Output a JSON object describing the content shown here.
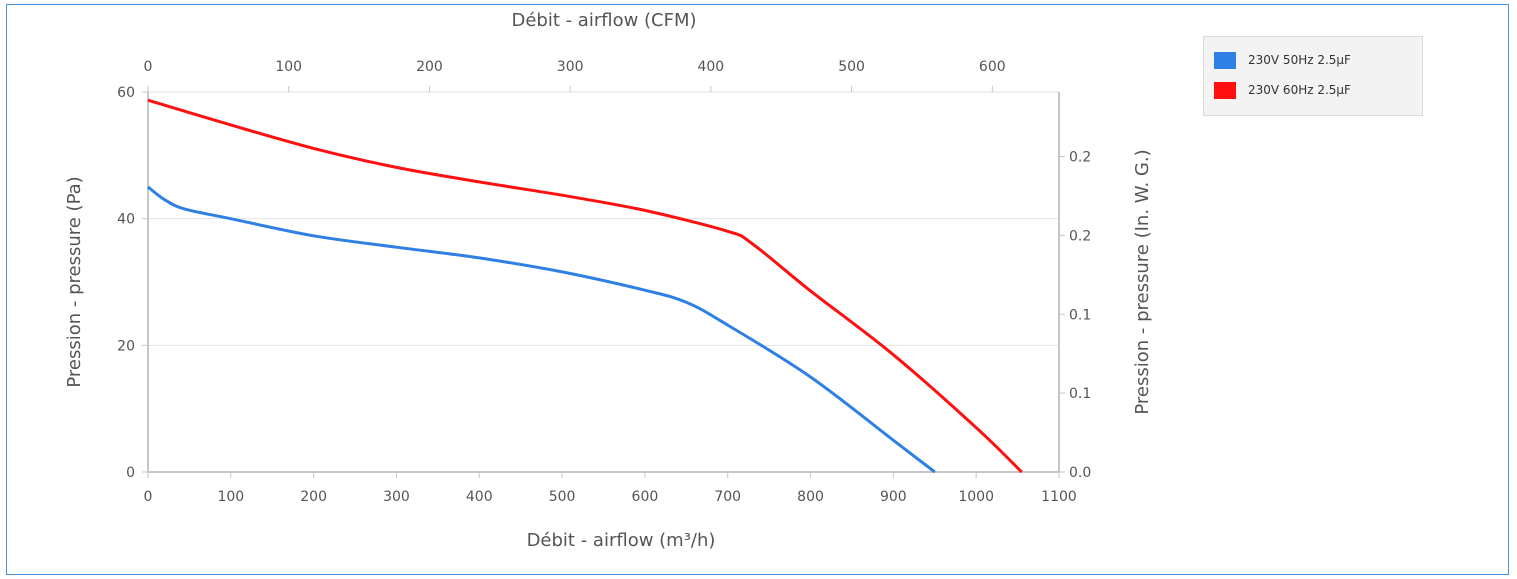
{
  "chart_data": {
    "type": "line",
    "xlabel": "Débit - airflow (m³/h)",
    "x2label": "Débit - airflow (CFM)",
    "ylabel": "Pression - pressure (Pa)",
    "y2label": "Pression - pressure (In. W. G.)",
    "xlim": [
      0,
      1100
    ],
    "ylim": [
      0,
      60
    ],
    "x2lim": [
      0,
      647.4
    ],
    "y2lim": [
      0,
      0.2409
    ],
    "x_ticks": [
      "0",
      "100",
      "200",
      "300",
      "400",
      "500",
      "600",
      "700",
      "800",
      "900",
      "1000",
      "1100"
    ],
    "y_ticks": [
      "0",
      "20",
      "40",
      "60"
    ],
    "x2_ticks": [
      "0",
      "100",
      "200",
      "300",
      "400",
      "500",
      "600"
    ],
    "y2_ticks": [
      "0.0",
      "0.1",
      "0.1",
      "0.2",
      "0.2"
    ],
    "y2_tick_values": [
      0.0,
      0.05,
      0.1,
      0.15,
      0.2
    ],
    "grid": true,
    "legend": "right",
    "series": [
      {
        "name": "230V 50Hz 2.5µF",
        "color": "#2f80e4",
        "x": [
          0,
          20,
          45,
          100,
          200,
          300,
          400,
          500,
          600,
          650,
          700,
          800,
          900,
          950
        ],
        "y": [
          45,
          43,
          41.5,
          40,
          37.3,
          35.5,
          33.8,
          31.6,
          28.7,
          26.8,
          23.2,
          15,
          5,
          0
        ]
      },
      {
        "name": "230V 60Hz 2.5µF",
        "color": "#ff1010",
        "x": [
          0,
          100,
          200,
          300,
          400,
          500,
          600,
          700,
          730,
          800,
          900,
          1000,
          1055
        ],
        "y": [
          58.7,
          54.8,
          51.1,
          48.1,
          45.8,
          43.7,
          41.3,
          38,
          36,
          28.6,
          18.5,
          7,
          0
        ]
      }
    ]
  }
}
